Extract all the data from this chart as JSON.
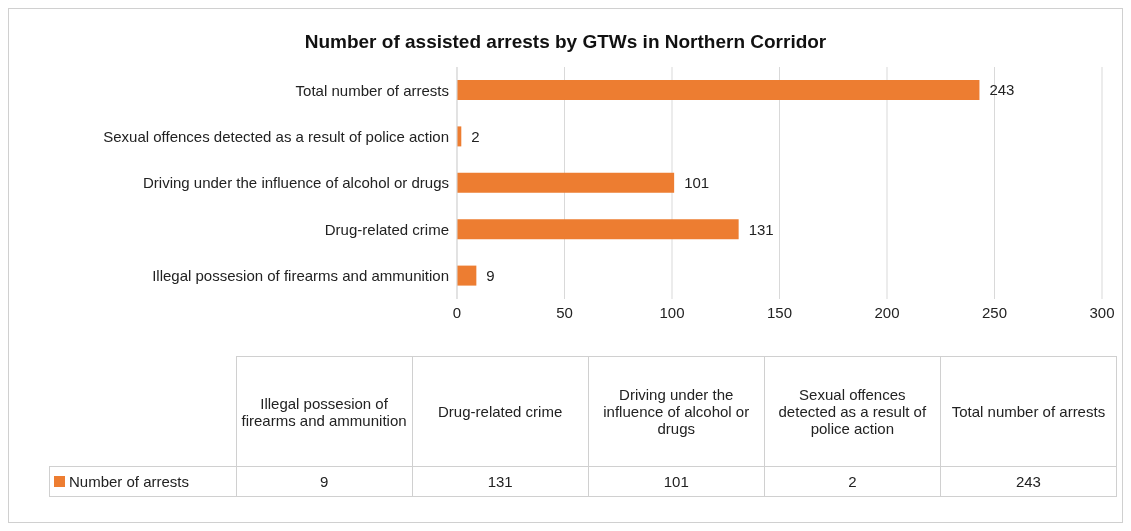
{
  "chart_data": {
    "type": "bar",
    "orientation": "horizontal",
    "title": "Number of assisted arrests by GTWs in Northern Corridor",
    "categories": [
      "Total number of arrests",
      "Sexual offences detected as a result of police action",
      "Driving under the influence of alcohol or drugs",
      "Drug-related crime",
      "Illegal possesion of firearms and ammunition"
    ],
    "series": [
      {
        "name": "Number of arrests",
        "color": "#ed7d31",
        "values": [
          243,
          2,
          101,
          131,
          9
        ],
        "value_labels": [
          "243",
          "2",
          "101",
          "131",
          "9"
        ]
      }
    ],
    "xlim": [
      0,
      300
    ],
    "xticks": [
      0,
      50,
      100,
      150,
      200,
      250,
      300
    ],
    "grid": "x",
    "legend": "bottom"
  }
}
